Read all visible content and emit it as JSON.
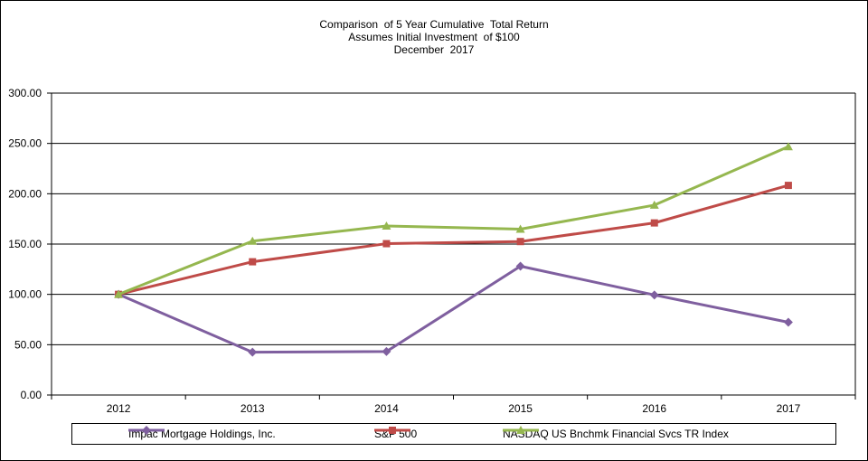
{
  "chart_data": {
    "type": "line",
    "title_lines": [
      "Comparison  of 5 Year Cumulative  Total Return",
      "Assumes Initial Investment  of $100",
      "December  2017"
    ],
    "categories": [
      "2012",
      "2013",
      "2014",
      "2015",
      "2016",
      "2017"
    ],
    "ylim": [
      0,
      300
    ],
    "yticks": [
      "0.00",
      "50.00",
      "100.00",
      "150.00",
      "200.00",
      "250.00",
      "300.00"
    ],
    "ytick_values": [
      0,
      50,
      100,
      150,
      200,
      250,
      300
    ],
    "grid": true,
    "legend_position": "bottom",
    "series": [
      {
        "name": "Impac Mortgage Holdings, Inc.",
        "color": "#7f5f9f",
        "marker": "diamond",
        "values": [
          100.0,
          42.5,
          43.2,
          128.0,
          99.4,
          72.3
        ]
      },
      {
        "name": "S&P 500",
        "color": "#bf4b48",
        "marker": "square",
        "values": [
          100.0,
          132.4,
          150.4,
          152.5,
          171.0,
          208.3
        ]
      },
      {
        "name": "NASDAQ US Bnchmk Financial Svcs TR Index",
        "color": "#95b74f",
        "marker": "triangle",
        "values": [
          100.0,
          152.9,
          168.0,
          164.8,
          188.7,
          246.8
        ]
      }
    ]
  }
}
